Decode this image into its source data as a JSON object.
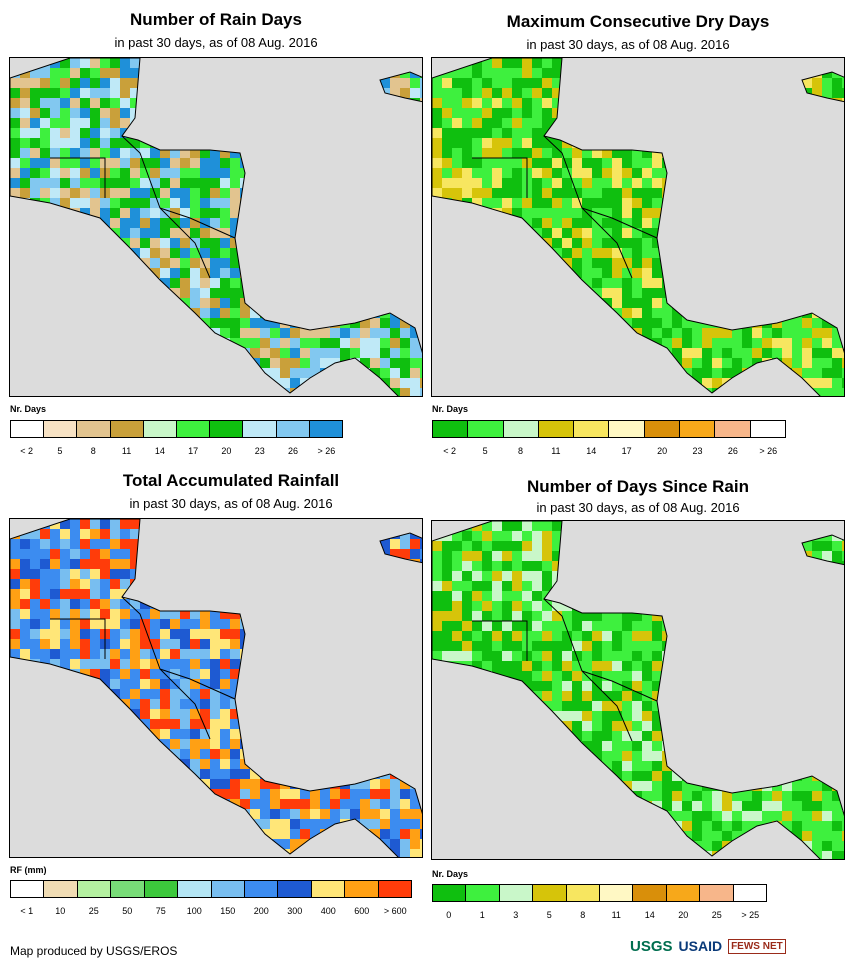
{
  "panels": [
    {
      "title": "Number of Rain Days",
      "subtitle": "in past 30 days, as of 08 Aug. 2016",
      "legend_label": "Nr. Days",
      "legend_colors": [
        "#ffffff",
        "#f7e2c4",
        "#e2c48f",
        "#c9a03a",
        "#c9f7c9",
        "#3ef03e",
        "#0fbf0f",
        "#bfe9f7",
        "#82c8f0",
        "#1f90d9"
      ],
      "legend_ticks": [
        "< 2",
        "5",
        "8",
        "11",
        "14",
        "17",
        "20",
        "23",
        "26",
        "> 26"
      ],
      "palette": [
        "#0fbf0f",
        "#3ef03e",
        "#82c8f0",
        "#bfe9f7",
        "#e2c48f",
        "#c9a03a",
        "#1f90d9"
      ]
    },
    {
      "title": "Maximum Consecutive Dry Days",
      "subtitle": "in past 30 days, as of 08 Aug. 2016",
      "legend_label": "Nr. Days",
      "legend_colors": [
        "#0fbf0f",
        "#3ef03e",
        "#c9f7c9",
        "#d6c40a",
        "#f7e660",
        "#fff8c4",
        "#d98f0a",
        "#f7a81a",
        "#f7b68a",
        "#ffffff"
      ],
      "legend_ticks": [
        "< 2",
        "5",
        "8",
        "11",
        "14",
        "17",
        "20",
        "23",
        "26",
        "> 26"
      ],
      "palette": [
        "#3ef03e",
        "#0fbf0f",
        "#3ef03e",
        "#0fbf0f",
        "#d6c40a",
        "#f7e660"
      ]
    },
    {
      "title": "Total Accumulated Rainfall",
      "subtitle": "in past 30 days, as of 08 Aug. 2016",
      "legend_label": "RF (mm)",
      "legend_colors": [
        "#ffffff",
        "#f0dcb4",
        "#b4f0a0",
        "#78dc78",
        "#3cc83c",
        "#b4e6f5",
        "#78bef0",
        "#3c8cf0",
        "#1e5ad2",
        "#ffe678",
        "#ffa014",
        "#ff3c0a"
      ],
      "legend_ticks": [
        "< 1",
        "10",
        "25",
        "50",
        "75",
        "100",
        "150",
        "200",
        "300",
        "400",
        "600",
        "> 600"
      ],
      "palette": [
        "#1e5ad2",
        "#3c8cf0",
        "#78bef0",
        "#ffa014",
        "#ffe678",
        "#3c8cf0",
        "#ff3c0a"
      ]
    },
    {
      "title": "Number of Days Since Rain",
      "subtitle": "in past 30 days, as of 08 Aug. 2016",
      "legend_label": "Nr. Days",
      "legend_colors": [
        "#0fbf0f",
        "#3ef03e",
        "#c9f7c9",
        "#d6c40a",
        "#f7e660",
        "#fff8c4",
        "#d98f0a",
        "#f7a81a",
        "#f7b68a",
        "#ffffff"
      ],
      "legend_ticks": [
        "0",
        "1",
        "3",
        "5",
        "8",
        "11",
        "14",
        "20",
        "25",
        "> 25"
      ],
      "palette": [
        "#3ef03e",
        "#0fbf0f",
        "#3ef03e",
        "#c9f7c9",
        "#0fbf0f",
        "#d6c40a"
      ]
    }
  ],
  "footer": "Map produced by USGS/EROS",
  "logos": {
    "usgs": "USGS",
    "usaid": "USAID",
    "fews": "FEWS NET"
  }
}
